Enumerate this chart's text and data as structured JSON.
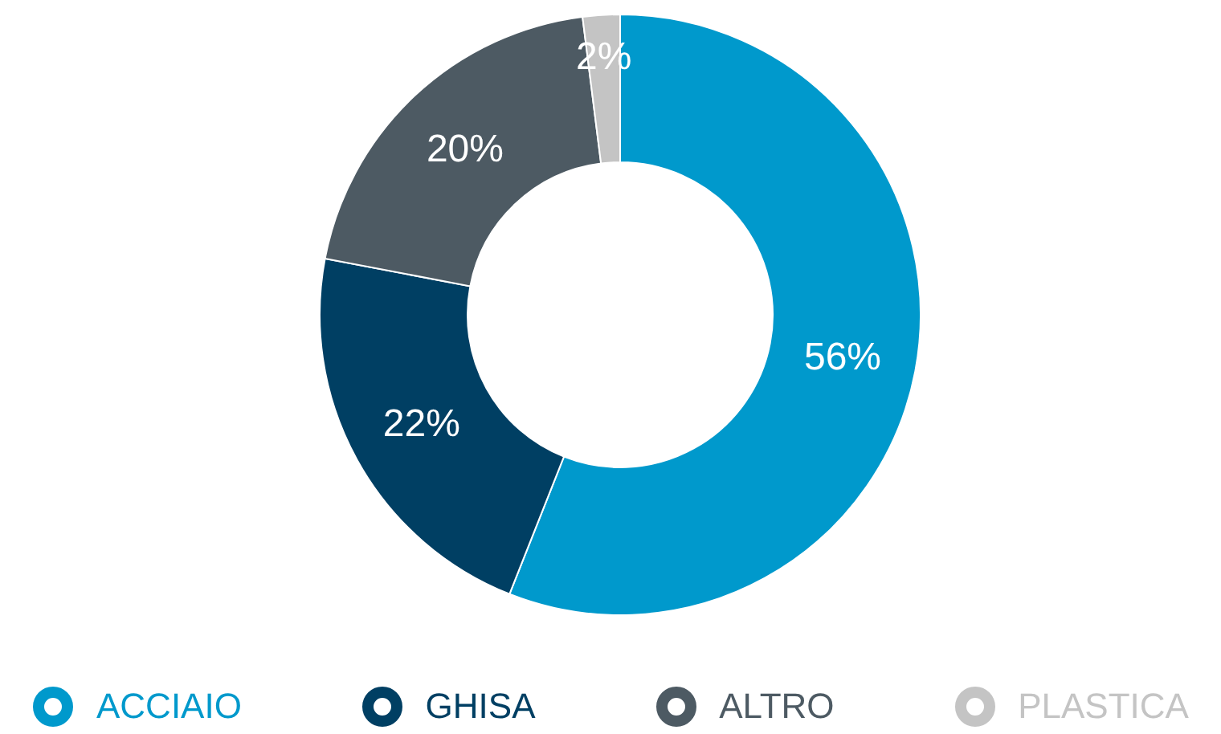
{
  "chart_data": {
    "type": "donut",
    "categories": [
      "ACCIAIO",
      "GHISA",
      "ALTRO",
      "PLASTICA"
    ],
    "values": [
      56,
      22,
      20,
      2
    ],
    "colors": [
      "#0099cc",
      "#003f63",
      "#4d5a63",
      "#c4c4c4"
    ],
    "value_labels": [
      "56%",
      "22%",
      "20%",
      "2%"
    ],
    "legend": "bottom"
  }
}
